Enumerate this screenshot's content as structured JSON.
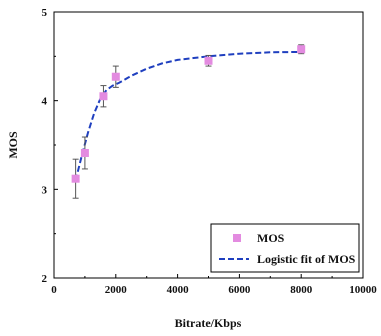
{
  "chart_data": {
    "type": "scatter",
    "title": "",
    "xlabel": "Bitrate/Kbps",
    "ylabel": "MOS",
    "xlim": [
      0,
      10000
    ],
    "ylim": [
      2,
      5
    ],
    "x_ticks": [
      0,
      2000,
      4000,
      6000,
      8000,
      10000
    ],
    "y_ticks": [
      2,
      3,
      4,
      5
    ],
    "x_tick_labels": [
      "0",
      "2000",
      "4000",
      "6000",
      "8000",
      "10000"
    ],
    "y_tick_labels": [
      "2",
      "3",
      "4",
      "5"
    ],
    "grid": false,
    "legend_position": "bottom-right",
    "series": [
      {
        "name": "MOS",
        "kind": "scatter-with-error-bars",
        "color": "#e38be0",
        "points": [
          {
            "x": 700,
            "y": 3.12,
            "err": 0.22
          },
          {
            "x": 1000,
            "y": 3.41,
            "err": 0.18
          },
          {
            "x": 1600,
            "y": 4.05,
            "err": 0.12
          },
          {
            "x": 2000,
            "y": 4.27,
            "err": 0.12
          },
          {
            "x": 5000,
            "y": 4.45,
            "err": 0.06
          },
          {
            "x": 8000,
            "y": 4.58,
            "err": 0.05
          }
        ]
      },
      {
        "name": "Logistic fit of MOS",
        "kind": "dashed-line",
        "color": "#1f3fbf",
        "x": [
          700,
          900,
          1100,
          1300,
          1500,
          1700,
          1900,
          2100,
          2500,
          3000,
          3500,
          4000,
          5000,
          6000,
          7000,
          8000
        ],
        "y": [
          3.1,
          3.38,
          3.64,
          3.86,
          4.02,
          4.12,
          4.17,
          4.2,
          4.28,
          4.36,
          4.42,
          4.46,
          4.5,
          4.53,
          4.545,
          4.55
        ]
      }
    ]
  }
}
